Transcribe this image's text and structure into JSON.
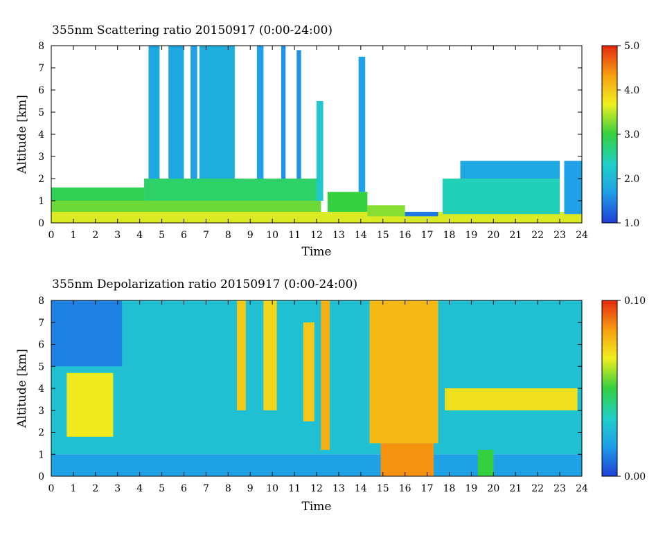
{
  "chart_data": [
    {
      "type": "heatmap",
      "title": "355nm Scattering ratio  20150917 (0:00-24:00)",
      "xlabel": "Time",
      "ylabel": "Altitude [km]",
      "xlim": [
        0,
        24
      ],
      "ylim": [
        0,
        8
      ],
      "xticks": [
        "0",
        "1",
        "2",
        "3",
        "4",
        "5",
        "6",
        "7",
        "8",
        "9",
        "10",
        "11",
        "12",
        "13",
        "14",
        "15",
        "16",
        "17",
        "18",
        "19",
        "20",
        "21",
        "22",
        "23",
        "24"
      ],
      "yticks": [
        "0",
        "1",
        "2",
        "3",
        "4",
        "5",
        "6",
        "7",
        "8"
      ],
      "colorbar": {
        "min": 1.0,
        "max": 5.0,
        "tick_labels": [
          "5.0",
          "4.0",
          "3.0",
          "2.0",
          "1.0"
        ],
        "tick_values": [
          5.0,
          4.0,
          3.0,
          2.0,
          1.0
        ]
      },
      "regions": [
        {
          "t0": 0,
          "t1": 24,
          "z0": 0,
          "z1": 0.5,
          "value": 3.6
        },
        {
          "t0": 0,
          "t1": 12.2,
          "z0": 0.5,
          "z1": 1.0,
          "value": 3.2
        },
        {
          "t0": 0,
          "t1": 4.2,
          "z0": 1.0,
          "z1": 1.6,
          "value": 2.9
        },
        {
          "t0": 4.2,
          "t1": 12.2,
          "z0": 1.0,
          "z1": 2.0,
          "value": 2.8
        },
        {
          "t0": 4.4,
          "t1": 4.9,
          "z0": 2.0,
          "z1": 8.0,
          "value": 1.8
        },
        {
          "t0": 5.3,
          "t1": 6.0,
          "z0": 2.0,
          "z1": 8.0,
          "value": 1.8
        },
        {
          "t0": 6.3,
          "t1": 6.6,
          "z0": 2.0,
          "z1": 8.0,
          "value": 1.7
        },
        {
          "t0": 6.7,
          "t1": 8.3,
          "z0": 2.0,
          "z1": 8.0,
          "value": 1.9
        },
        {
          "t0": 9.3,
          "t1": 9.6,
          "z0": 2.0,
          "z1": 8.0,
          "value": 1.7
        },
        {
          "t0": 10.4,
          "t1": 10.6,
          "z0": 2.0,
          "z1": 8.0,
          "value": 1.6
        },
        {
          "t0": 11.1,
          "t1": 11.3,
          "z0": 2.0,
          "z1": 7.8,
          "value": 1.6
        },
        {
          "t0": 12.0,
          "t1": 12.3,
          "z0": 1.0,
          "z1": 5.5,
          "value": 2.2
        },
        {
          "t0": 12.5,
          "t1": 14.3,
          "z0": 0.5,
          "z1": 1.4,
          "value": 3.0
        },
        {
          "t0": 13.9,
          "t1": 14.2,
          "z0": 1.4,
          "z1": 7.5,
          "value": 1.7
        },
        {
          "t0": 14.3,
          "t1": 16.0,
          "z0": 0.3,
          "z1": 0.8,
          "value": 3.3
        },
        {
          "t0": 16.0,
          "t1": 17.5,
          "z0": 0.3,
          "z1": 0.5,
          "value": 1.4
        },
        {
          "t0": 17.7,
          "t1": 23.0,
          "z0": 0.4,
          "z1": 2.0,
          "value": 2.4
        },
        {
          "t0": 18.5,
          "t1": 23.0,
          "z0": 2.0,
          "z1": 2.8,
          "value": 1.8
        },
        {
          "t0": 23.2,
          "t1": 24.0,
          "z0": 0.4,
          "z1": 2.8,
          "value": 1.7
        }
      ]
    },
    {
      "type": "heatmap",
      "title": "355nm Depolarization ratio  20150917 (0:00-24:00)",
      "xlabel": "Time",
      "ylabel": "Altitude [km]",
      "xlim": [
        0,
        24
      ],
      "ylim": [
        0,
        8
      ],
      "xticks": [
        "0",
        "1",
        "2",
        "3",
        "4",
        "5",
        "6",
        "7",
        "8",
        "9",
        "10",
        "11",
        "12",
        "13",
        "14",
        "15",
        "16",
        "17",
        "18",
        "19",
        "20",
        "21",
        "22",
        "23",
        "24"
      ],
      "yticks": [
        "0",
        "1",
        "2",
        "3",
        "4",
        "5",
        "6",
        "7",
        "8"
      ],
      "colorbar": {
        "min": 0.0,
        "max": 0.1,
        "tick_labels": [
          "0.10",
          "0.00"
        ],
        "tick_values": [
          0.1,
          0.0
        ]
      },
      "regions": [
        {
          "t0": 0,
          "t1": 24,
          "z0": 0,
          "z1": 1.0,
          "value": 0.018
        },
        {
          "t0": 0,
          "t1": 24,
          "z0": 1.0,
          "z1": 8.0,
          "value": 0.028
        },
        {
          "t0": 0,
          "t1": 3.2,
          "z0": 5.0,
          "z1": 8.0,
          "value": 0.012
        },
        {
          "t0": 0.7,
          "t1": 2.8,
          "z0": 1.8,
          "z1": 4.7,
          "value": 0.068
        },
        {
          "t0": 8.4,
          "t1": 8.8,
          "z0": 3.0,
          "z1": 8.0,
          "value": 0.075
        },
        {
          "t0": 9.6,
          "t1": 10.2,
          "z0": 3.0,
          "z1": 8.0,
          "value": 0.072
        },
        {
          "t0": 11.4,
          "t1": 11.9,
          "z0": 2.5,
          "z1": 7.0,
          "value": 0.075
        },
        {
          "t0": 12.2,
          "t1": 12.6,
          "z0": 1.2,
          "z1": 8.0,
          "value": 0.08
        },
        {
          "t0": 14.4,
          "t1": 17.5,
          "z0": 1.5,
          "z1": 8.0,
          "value": 0.078
        },
        {
          "t0": 14.9,
          "t1": 17.3,
          "z0": 0.0,
          "z1": 1.5,
          "value": 0.085
        },
        {
          "t0": 17.8,
          "t1": 23.8,
          "z0": 3.0,
          "z1": 4.0,
          "value": 0.07
        },
        {
          "t0": 19.3,
          "t1": 20.0,
          "z0": 0.0,
          "z1": 1.2,
          "value": 0.05
        }
      ]
    }
  ]
}
